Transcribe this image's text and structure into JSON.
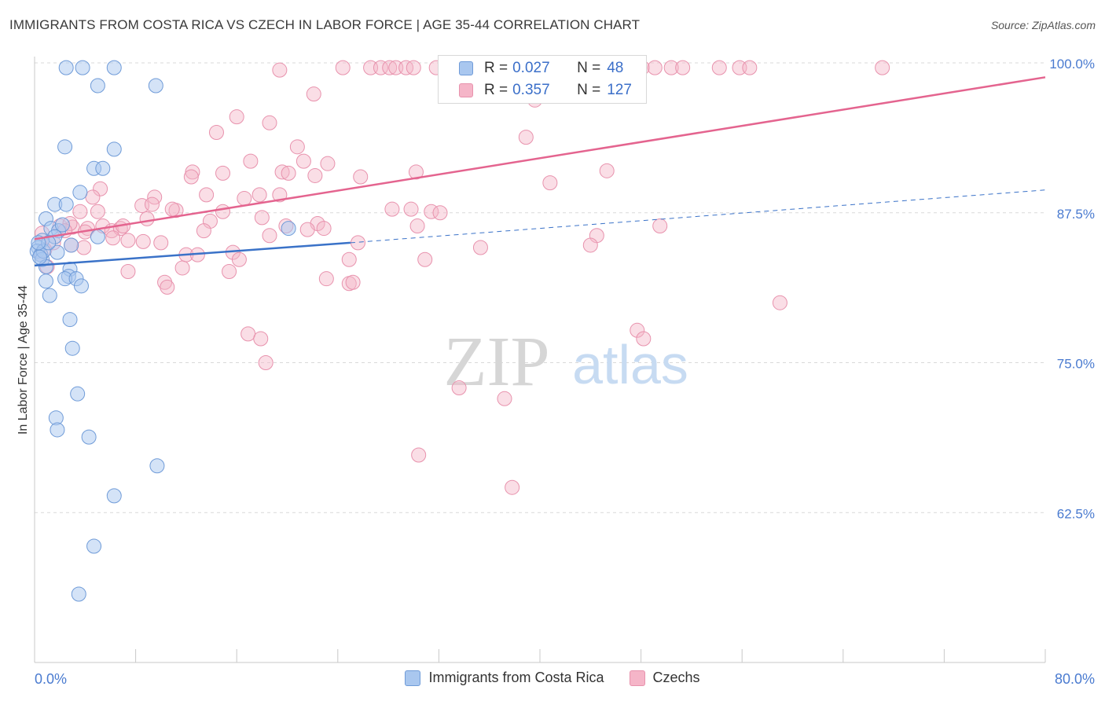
{
  "header": {
    "title": "IMMIGRANTS FROM COSTA RICA VS CZECH IN LABOR FORCE | AGE 35-44 CORRELATION CHART",
    "source": "Source: ZipAtlas.com"
  },
  "watermark": {
    "zip": "ZIP",
    "atlas": "atlas"
  },
  "stats": [
    {
      "r_label": "R =",
      "r_value": "0.027",
      "n_label": "N =",
      "n_value": "48",
      "color": "#a9c7ef"
    },
    {
      "r_label": "R =",
      "r_value": "0.357",
      "n_label": "N =",
      "n_value": "127",
      "color": "#f5b5c8"
    }
  ],
  "legend": [
    {
      "label": "Immigrants from Costa Rica",
      "color": "#a9c7ef"
    },
    {
      "label": "Czechs",
      "color": "#f5b5c8"
    }
  ],
  "chart_data": {
    "type": "scatter",
    "title": "IMMIGRANTS FROM COSTA RICA VS CZECH IN LABOR FORCE | AGE 35-44 CORRELATION CHART",
    "xlabel": "",
    "ylabel": "In Labor Force | Age 35-44",
    "xlim": [
      0,
      80
    ],
    "ylim": [
      50,
      100
    ],
    "x_tick_labels": [
      "0.0%",
      "80.0%"
    ],
    "y_ticks": [
      62.5,
      75.0,
      87.5,
      100.0
    ],
    "y_tick_labels": [
      "62.5%",
      "75.0%",
      "87.5%",
      "100.0%"
    ],
    "grid": true,
    "legend_position": "bottom-center",
    "colors": {
      "blue_fill": "#a9c7ef",
      "blue_line": "#3a72c8",
      "pink_fill": "#f5b5c8",
      "pink_line": "#e4648f",
      "tick_text": "#4a7bd0"
    },
    "series": [
      {
        "name": "Immigrants from Costa Rica",
        "trend": {
          "x": [
            0,
            25
          ],
          "y": [
            83.1,
            85.0
          ],
          "dashed_to": [
            80,
            89.4
          ]
        },
        "points": [
          [
            2.5,
            99.6
          ],
          [
            3.8,
            99.6
          ],
          [
            6.3,
            99.6
          ],
          [
            5.0,
            98.1
          ],
          [
            9.6,
            98.1
          ],
          [
            2.4,
            93.0
          ],
          [
            4.7,
            91.2
          ],
          [
            5.4,
            91.2
          ],
          [
            6.3,
            92.8
          ],
          [
            3.6,
            89.2
          ],
          [
            1.6,
            88.2
          ],
          [
            2.5,
            88.2
          ],
          [
            0.9,
            87.0
          ],
          [
            1.3,
            86.2
          ],
          [
            1.9,
            86.0
          ],
          [
            5.0,
            85.5
          ],
          [
            1.6,
            85.5
          ],
          [
            0.6,
            85.2
          ],
          [
            0.3,
            84.6
          ],
          [
            2.9,
            84.8
          ],
          [
            0.2,
            84.3
          ],
          [
            1.8,
            84.2
          ],
          [
            0.5,
            84.0
          ],
          [
            0.6,
            83.6
          ],
          [
            0.9,
            83.0
          ],
          [
            2.8,
            82.8
          ],
          [
            2.7,
            82.2
          ],
          [
            2.4,
            82.0
          ],
          [
            3.3,
            82.0
          ],
          [
            0.9,
            81.8
          ],
          [
            3.7,
            81.4
          ],
          [
            1.2,
            80.6
          ],
          [
            2.8,
            78.6
          ],
          [
            3.0,
            76.2
          ],
          [
            3.4,
            72.4
          ],
          [
            1.7,
            70.4
          ],
          [
            1.8,
            69.4
          ],
          [
            4.3,
            68.8
          ],
          [
            9.7,
            66.4
          ],
          [
            6.3,
            63.9
          ],
          [
            4.7,
            59.7
          ],
          [
            3.5,
            55.7
          ],
          [
            20.1,
            86.2
          ],
          [
            0.7,
            84.3
          ],
          [
            0.4,
            83.8
          ],
          [
            1.1,
            85.0
          ],
          [
            2.2,
            86.5
          ],
          [
            0.3,
            85.0
          ]
        ]
      },
      {
        "name": "Czechs",
        "trend": {
          "x": [
            0,
            80
          ],
          "y": [
            85.3,
            98.8
          ]
        },
        "points": [
          [
            19.4,
            99.4
          ],
          [
            24.4,
            99.6
          ],
          [
            26.6,
            99.6
          ],
          [
            27.4,
            99.6
          ],
          [
            28.1,
            99.6
          ],
          [
            28.6,
            99.6
          ],
          [
            29.4,
            99.6
          ],
          [
            30.0,
            99.6
          ],
          [
            31.8,
            99.6
          ],
          [
            32.5,
            99.6
          ],
          [
            33.8,
            99.6
          ],
          [
            35.1,
            99.6
          ],
          [
            35.6,
            99.6
          ],
          [
            36.4,
            99.6
          ],
          [
            38.2,
            99.6
          ],
          [
            40.8,
            99.6
          ],
          [
            41.6,
            99.6
          ],
          [
            42.5,
            99.6
          ],
          [
            43.4,
            99.6
          ],
          [
            44.0,
            99.6
          ],
          [
            45.1,
            99.6
          ],
          [
            48.1,
            99.6
          ],
          [
            49.1,
            99.6
          ],
          [
            50.4,
            99.6
          ],
          [
            51.3,
            99.6
          ],
          [
            54.2,
            99.6
          ],
          [
            55.8,
            99.6
          ],
          [
            56.6,
            99.6
          ],
          [
            67.1,
            99.6
          ],
          [
            22.1,
            97.4
          ],
          [
            39.6,
            96.9
          ],
          [
            16.0,
            95.5
          ],
          [
            18.6,
            95.0
          ],
          [
            14.4,
            94.2
          ],
          [
            38.9,
            93.8
          ],
          [
            20.8,
            93.0
          ],
          [
            21.3,
            91.8
          ],
          [
            17.1,
            91.8
          ],
          [
            23.2,
            91.6
          ],
          [
            14.9,
            90.8
          ],
          [
            12.5,
            90.9
          ],
          [
            12.4,
            90.5
          ],
          [
            19.6,
            90.9
          ],
          [
            20.1,
            90.8
          ],
          [
            22.2,
            90.6
          ],
          [
            25.8,
            90.5
          ],
          [
            30.2,
            90.9
          ],
          [
            45.3,
            91.0
          ],
          [
            40.8,
            90.0
          ],
          [
            5.2,
            89.5
          ],
          [
            13.6,
            89.0
          ],
          [
            19.4,
            89.0
          ],
          [
            9.5,
            88.8
          ],
          [
            16.6,
            88.7
          ],
          [
            4.6,
            88.8
          ],
          [
            8.5,
            88.1
          ],
          [
            28.3,
            87.8
          ],
          [
            29.8,
            87.8
          ],
          [
            31.4,
            87.6
          ],
          [
            32.1,
            87.5
          ],
          [
            14.9,
            87.6
          ],
          [
            5.0,
            87.6
          ],
          [
            3.6,
            87.6
          ],
          [
            11.2,
            87.7
          ],
          [
            10.9,
            87.8
          ],
          [
            8.9,
            87.0
          ],
          [
            13.9,
            86.8
          ],
          [
            18.0,
            87.1
          ],
          [
            22.4,
            86.6
          ],
          [
            5.4,
            86.4
          ],
          [
            6.1,
            86.0
          ],
          [
            6.8,
            86.2
          ],
          [
            7.0,
            86.4
          ],
          [
            4.2,
            86.2
          ],
          [
            3.0,
            86.3
          ],
          [
            2.0,
            86.4
          ],
          [
            2.8,
            86.6
          ],
          [
            13.4,
            86.0
          ],
          [
            19.9,
            86.4
          ],
          [
            21.6,
            86.1
          ],
          [
            22.9,
            86.2
          ],
          [
            30.3,
            86.4
          ],
          [
            49.5,
            86.4
          ],
          [
            6.2,
            85.4
          ],
          [
            7.4,
            85.2
          ],
          [
            8.6,
            85.1
          ],
          [
            10.0,
            85.0
          ],
          [
            18.6,
            85.6
          ],
          [
            25.6,
            85.0
          ],
          [
            44.5,
            85.6
          ],
          [
            2.9,
            84.8
          ],
          [
            3.9,
            84.6
          ],
          [
            35.3,
            84.6
          ],
          [
            44.0,
            84.8
          ],
          [
            12.0,
            84.0
          ],
          [
            12.9,
            84.0
          ],
          [
            15.7,
            84.2
          ],
          [
            16.2,
            83.6
          ],
          [
            0.6,
            85.8
          ],
          [
            1.0,
            83.0
          ],
          [
            24.9,
            83.6
          ],
          [
            30.9,
            83.6
          ],
          [
            11.7,
            82.9
          ],
          [
            7.4,
            82.6
          ],
          [
            15.4,
            82.6
          ],
          [
            23.1,
            82.0
          ],
          [
            10.3,
            81.7
          ],
          [
            10.5,
            81.3
          ],
          [
            24.9,
            81.6
          ],
          [
            25.2,
            81.7
          ],
          [
            59.0,
            80.0
          ],
          [
            16.9,
            77.4
          ],
          [
            17.9,
            77.0
          ],
          [
            47.7,
            77.7
          ],
          [
            48.2,
            77.0
          ],
          [
            18.3,
            75.0
          ],
          [
            33.6,
            72.9
          ],
          [
            37.2,
            72.0
          ],
          [
            30.4,
            67.3
          ],
          [
            37.8,
            64.6
          ],
          [
            0.5,
            84.0
          ],
          [
            1.5,
            85.0
          ],
          [
            2.4,
            86.0
          ],
          [
            0.8,
            84.4
          ],
          [
            4.0,
            85.9
          ],
          [
            9.3,
            88.2
          ],
          [
            17.8,
            89.0
          ]
        ]
      }
    ]
  }
}
